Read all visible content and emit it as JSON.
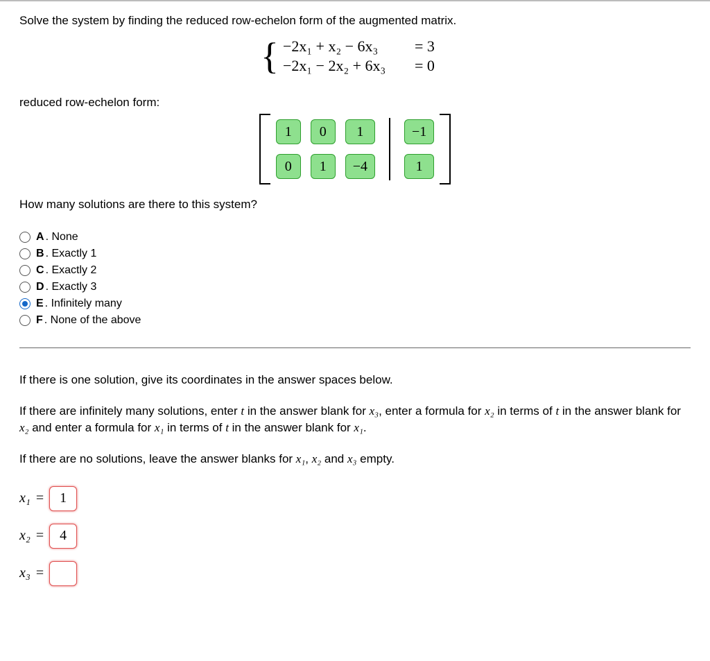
{
  "prompt": "Solve the system by finding the reduced row-echelon form of the augmented matrix.",
  "equations": {
    "rows": [
      {
        "lhs": "−2x₁ + x₂ − 6x₃",
        "rhs": "= 3"
      },
      {
        "lhs": "−2x₁ − 2x₂ + 6x₃",
        "rhs": "= 0"
      }
    ]
  },
  "rref_label": "reduced row-echelon form:",
  "matrix": {
    "left": [
      [
        "1",
        "0",
        "1"
      ],
      [
        "0",
        "1",
        "−4"
      ]
    ],
    "right": [
      "−1",
      "1"
    ],
    "cell_color_green": "#8ee08e",
    "cell_border_green": "#2e9e2e"
  },
  "question": "How many solutions are there to this system?",
  "options": [
    {
      "key": "A",
      "label": "None",
      "selected": false
    },
    {
      "key": "B",
      "label": "Exactly 1",
      "selected": false
    },
    {
      "key": "C",
      "label": "Exactly 2",
      "selected": false
    },
    {
      "key": "D",
      "label": "Exactly 3",
      "selected": false
    },
    {
      "key": "E",
      "label": "Infinitely many",
      "selected": true
    },
    {
      "key": "F",
      "label": "None of the above",
      "selected": false
    }
  ],
  "instructions": {
    "p1": "If there is one solution, give its coordinates in the answer spaces below.",
    "p2_a": "If there are infinitely many solutions, enter ",
    "p2_b": " in the answer blank for ",
    "p2_c": ", enter a formula for ",
    "p2_d": " in terms of ",
    "p2_e": " in the answer blank for ",
    "p2_f": " and enter a formula for ",
    "p2_g": " in terms of ",
    "p2_h": " in the answer blank for ",
    "p3_a": "If there are no solutions, leave the answer blanks for ",
    "p3_b": " and ",
    "p3_c": " empty."
  },
  "answers": {
    "x1": {
      "value": "1",
      "status": "red"
    },
    "x2": {
      "value": "4",
      "status": "red"
    },
    "x3": {
      "value": "",
      "status": "red"
    }
  },
  "glyphs": {
    "t": "t",
    "x1": "x₁",
    "x2": "x₂",
    "x3": "x₃",
    "comma": ", ",
    "period": "."
  }
}
